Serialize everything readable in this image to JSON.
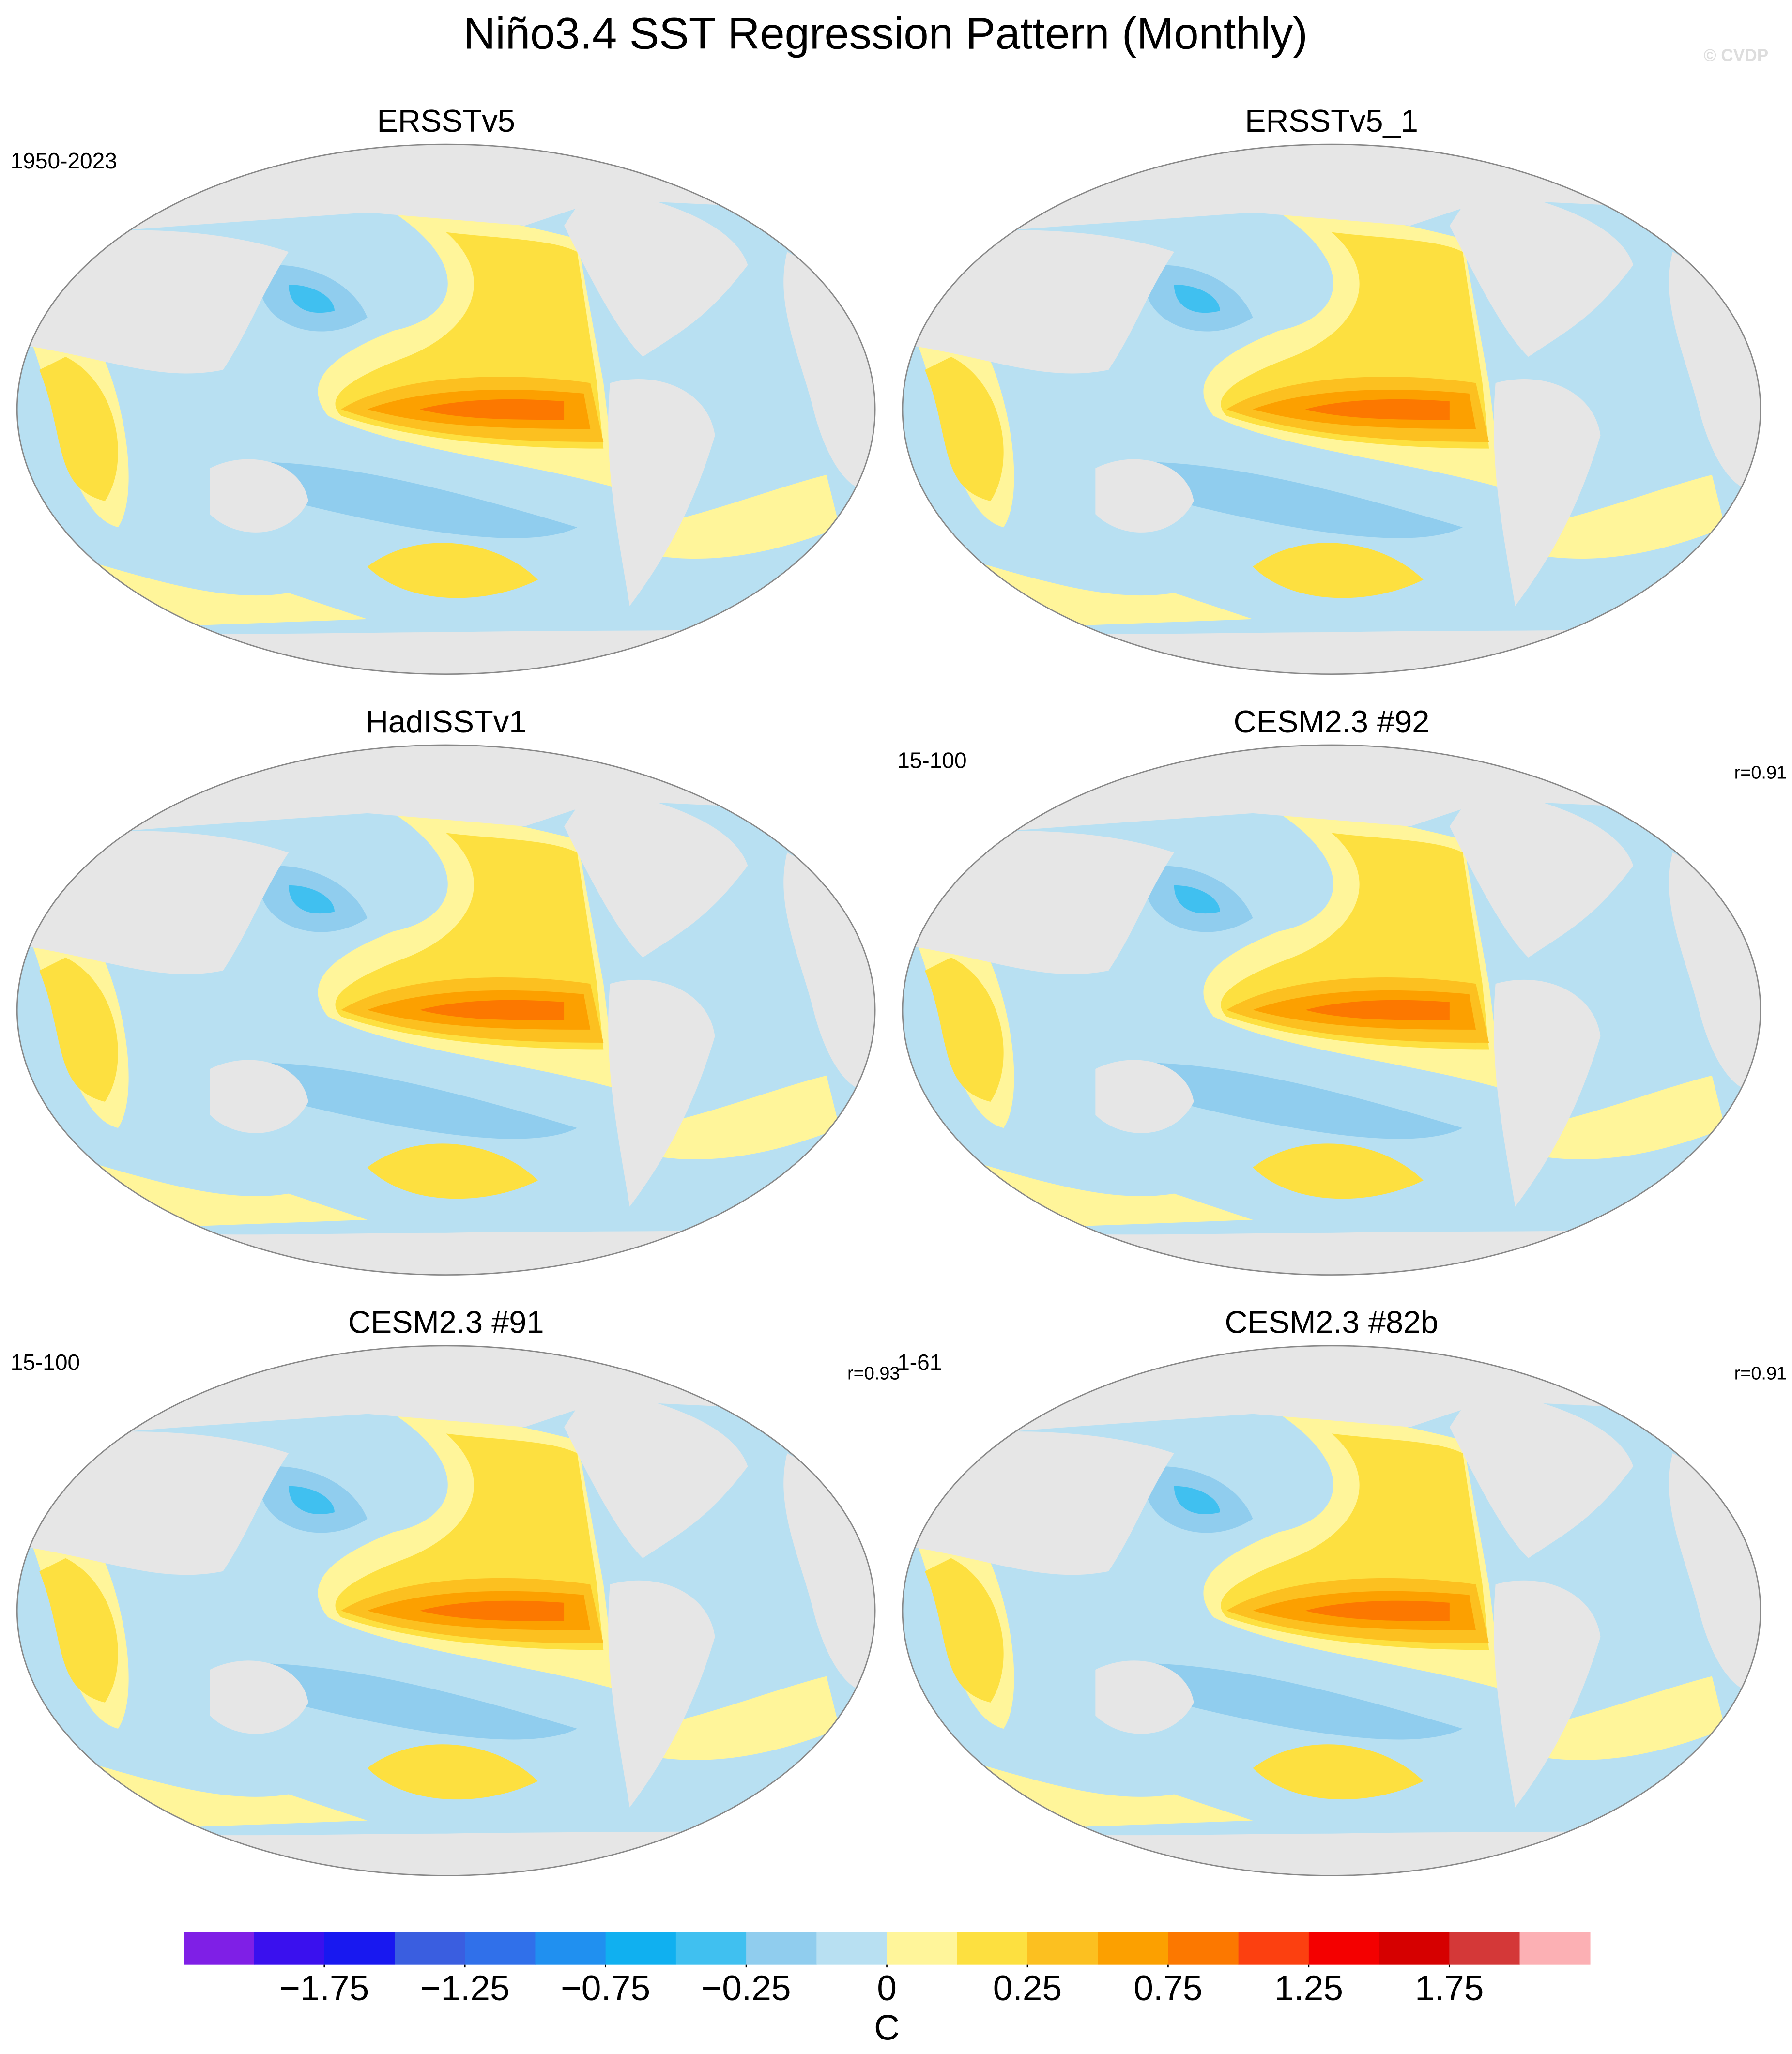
{
  "chart_data": {
    "type": "map",
    "title": "Niño3.4 SST Regression Pattern (Monthly)",
    "watermark": "© CVDP",
    "panels": [
      {
        "title": "ERSSTv5",
        "left_label": "1950-2023"
      },
      {
        "title": "ERSSTv5_1"
      },
      {
        "title": "HadISSTv1"
      },
      {
        "title": "CESM2.3 #92",
        "left_label": "15-100",
        "right_label": "r=0.91"
      },
      {
        "title": "CESM2.3 #91",
        "left_label": "15-100",
        "right_label": "r=0.93"
      },
      {
        "title": "CESM2.3 #82b",
        "left_label": "1-61",
        "right_label": "r=0.91"
      }
    ],
    "colorbar": {
      "unit": "C",
      "colors": [
        "#7f1fe6",
        "#3a10ee",
        "#1818f0",
        "#3a5ee0",
        "#3070ea",
        "#2090f0",
        "#10b0f0",
        "#40c0f0",
        "#90cdee",
        "#b8e0f2",
        "#fff59a",
        "#fde040",
        "#fcc020",
        "#fca000",
        "#fc7800",
        "#fc4010",
        "#f40000",
        "#d60000",
        "#d43838",
        "#fcb0b4"
      ],
      "levels": [
        -2,
        -1.75,
        -1.5,
        -1.25,
        -1,
        -0.75,
        -0.5,
        -0.25,
        -0.1,
        0,
        0.1,
        0.25,
        0.5,
        0.75,
        1,
        1.25,
        1.5,
        1.75,
        2
      ],
      "ticks": [
        {
          "value": -1.75,
          "label": "−1.75"
        },
        {
          "value": -1.25,
          "label": "−1.25"
        },
        {
          "value": -0.75,
          "label": "−0.75"
        },
        {
          "value": -0.25,
          "label": "−0.25"
        },
        0,
        0.25,
        0.75,
        1.25,
        1.75
      ]
    }
  }
}
